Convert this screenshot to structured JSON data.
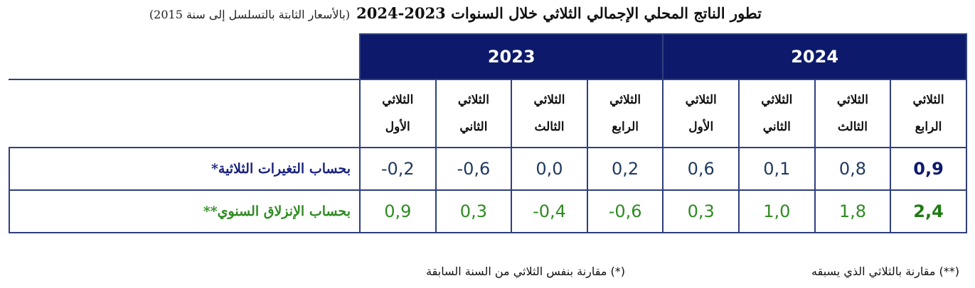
{
  "header": {
    "title": "تطور الناتج المحلي الإجمالي الثلاثي خلال السنوات 2023-2024",
    "subtitle": "(بالأسعار الثابتة بالتسلسل إلى سنة 2015)"
  },
  "table": {
    "years": [
      "2023",
      "2024"
    ],
    "quarters": [
      [
        "الثلاثي",
        "الأول"
      ],
      [
        "الثلاثي",
        "الثاني"
      ],
      [
        "الثلاثي",
        "الثالث"
      ],
      [
        "الثلاثي",
        "الرابع"
      ],
      [
        "الثلاثي",
        "الأول"
      ],
      [
        "الثلاثي",
        "الثاني"
      ],
      [
        "الثلاثي",
        "الثالث"
      ],
      [
        "الثلاثي",
        "الرابع"
      ]
    ],
    "rows": [
      {
        "label": "بحساب التغيرات الثلاثية*",
        "values": [
          "-0,2",
          "-0,6",
          "0,0",
          "0,2",
          "0,6",
          "0,1",
          "0,8",
          "0,9"
        ]
      },
      {
        "label": "بحساب الإنزلاق السنوي**",
        "values": [
          "0,9",
          "0,3",
          "-0,4",
          "-0,6",
          "0,3",
          "1,0",
          "1,8",
          "2,4"
        ]
      }
    ]
  },
  "footnotes": [
    "(**) مقارنة بالثلاثي الذي يسبقه",
    "(*) مقارنة بنفس الثلاثي من السنة السابقة"
  ]
}
